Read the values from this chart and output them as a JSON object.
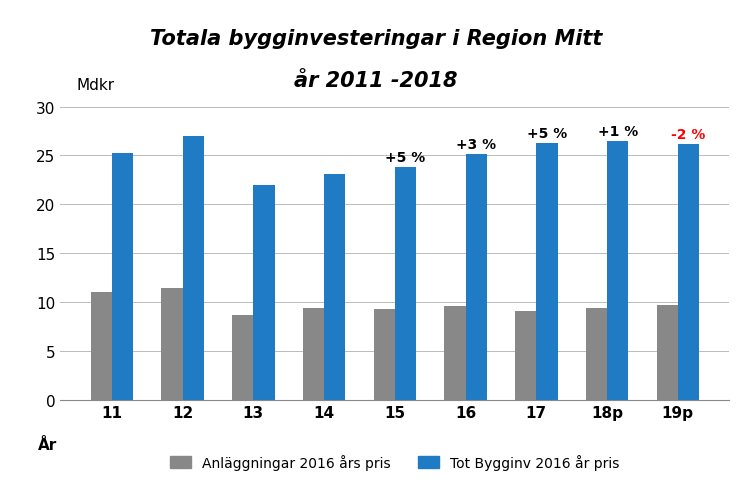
{
  "title_line1": "Totala bygginvesteringar i Region Mitt",
  "title_line2": "år 2011 -2018",
  "mdkr_label": "Mdkr",
  "ar_label": "År",
  "categories": [
    "11",
    "12",
    "13",
    "14",
    "15",
    "16",
    "17",
    "18p",
    "19p"
  ],
  "anlaggningar": [
    11.0,
    11.5,
    8.7,
    9.4,
    9.3,
    9.6,
    9.1,
    9.4,
    9.7
  ],
  "tot_bygginv": [
    25.3,
    27.0,
    22.0,
    23.1,
    23.8,
    25.2,
    26.3,
    26.5,
    26.2
  ],
  "anlaggningar_color": "#888888",
  "tot_bygginv_color": "#1f7bc4",
  "annotations": {
    "15": {
      "text": "+5 %",
      "color": "#000000"
    },
    "16": {
      "text": "+3 %",
      "color": "#000000"
    },
    "17": {
      "text": "+5 %",
      "color": "#000000"
    },
    "18p": {
      "text": "+1 %",
      "color": "#000000"
    },
    "19p": {
      "text": "-2 %",
      "color": "#ff0000"
    }
  },
  "legend_anlaggningar": "Anläggningar 2016 års pris",
  "legend_tot": "Tot Bygginv 2016 år pris",
  "ylim": [
    0,
    30
  ],
  "yticks": [
    0,
    5,
    10,
    15,
    20,
    25,
    30
  ],
  "background_color": "#ffffff",
  "bar_width": 0.3,
  "title_fontsize": 15,
  "tick_fontsize": 11,
  "annotation_fontsize": 10,
  "legend_fontsize": 10,
  "label_fontsize": 11
}
